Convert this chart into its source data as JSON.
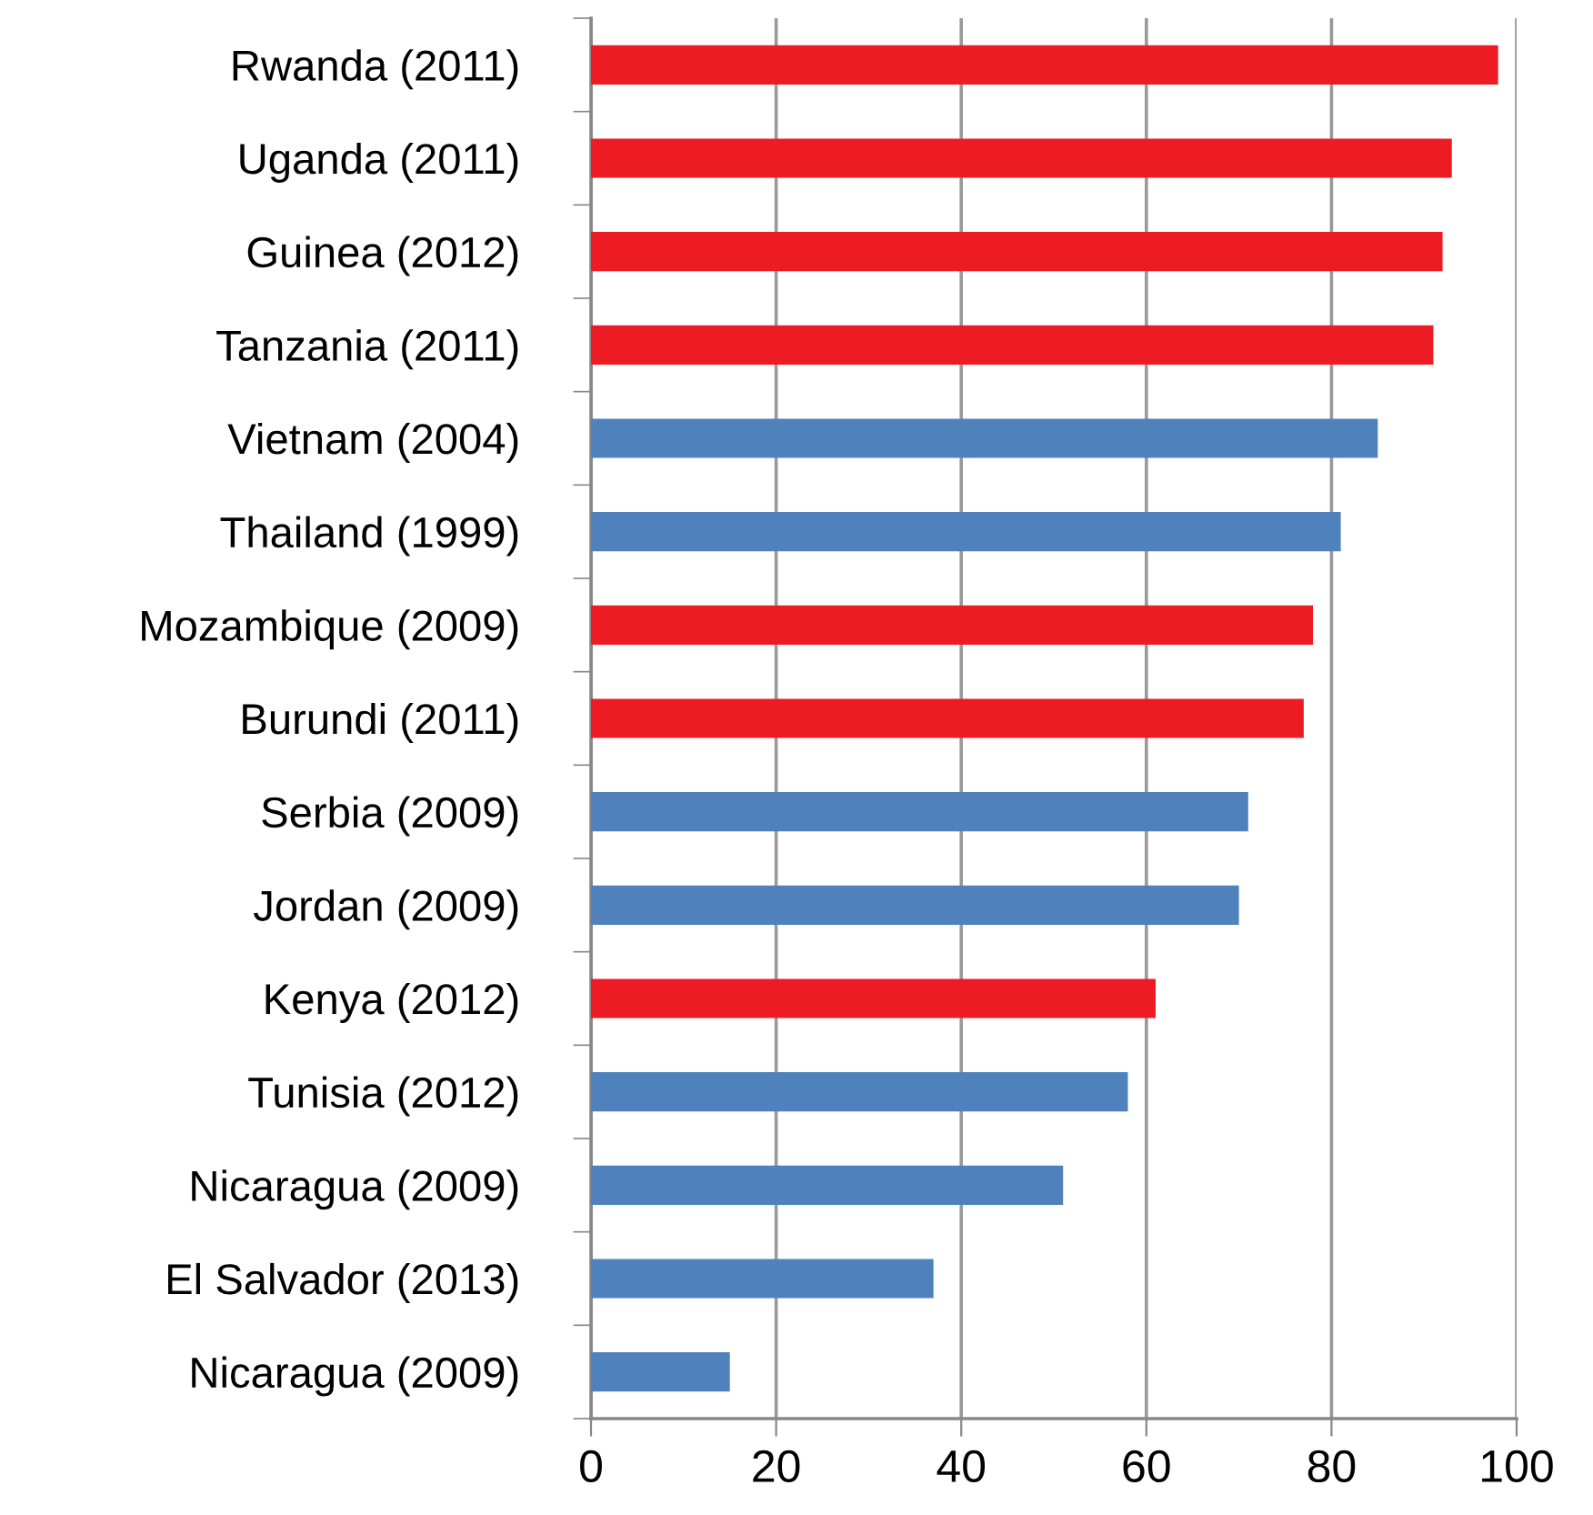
{
  "chart_data": {
    "type": "bar",
    "orientation": "horizontal",
    "categories": [
      "Rwanda (2011)",
      "Uganda (2011)",
      "Guinea (2012)",
      "Tanzania (2011)",
      "Vietnam (2004)",
      "Thailand (1999)",
      "Mozambique (2009)",
      "Burundi (2011)",
      "Serbia (2009)",
      "Jordan (2009)",
      "Kenya (2012)",
      "Tunisia (2012)",
      "Nicaragua (2009)",
      "El Salvador (2013)",
      "Nicaragua (2009)"
    ],
    "values": [
      98,
      93,
      92,
      91,
      85,
      81,
      78,
      77,
      71,
      70,
      61,
      58,
      51,
      37,
      15
    ],
    "colors": [
      "#ed1c24",
      "#ed1c24",
      "#ed1c24",
      "#ed1c24",
      "#4f81bd",
      "#4f81bd",
      "#ed1c24",
      "#ed1c24",
      "#4f81bd",
      "#4f81bd",
      "#ed1c24",
      "#4f81bd",
      "#4f81bd",
      "#4f81bd",
      "#4f81bd"
    ],
    "xlim": [
      0,
      100
    ],
    "xticks": [
      0,
      20,
      40,
      60,
      80,
      100
    ],
    "grid": "x"
  }
}
